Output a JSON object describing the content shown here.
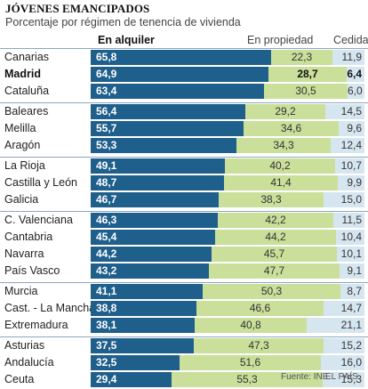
{
  "header": {
    "title": "JÓVENES EMANCIPADOS",
    "subtitle": "Porcentaje por régimen de tenencia de vivienda"
  },
  "columns": {
    "rent": "En alquiler",
    "own": "En propiedad",
    "ced": "Cedida"
  },
  "footer": {
    "source": "Fuente: INE.",
    "credit": "EL PAÍS"
  },
  "colors": {
    "rent": "#1f5f8b",
    "own": "#c9df9a",
    "ced": "#d6e6f0"
  },
  "chart_data": {
    "type": "bar",
    "orientation": "horizontal",
    "stacked": true,
    "title": "JÓVENES EMANCIPADOS",
    "subtitle": "Porcentaje por régimen de tenencia de vivienda",
    "categories": [
      "Canarias",
      "Madrid",
      "Cataluña",
      "Baleares",
      "Melilla",
      "Aragón",
      "La Rioja",
      "Castilla y León",
      "Galicia",
      "C. Valenciana",
      "Cantabria",
      "Navarra",
      "País Vasco",
      "Murcia",
      "Cast. - La Mancha",
      "Extremadura",
      "Asturias",
      "Andalucía",
      "Ceuta"
    ],
    "highlighted": [
      "Madrid"
    ],
    "groups": [
      3,
      3,
      3,
      4,
      3,
      3
    ],
    "series": [
      {
        "name": "En alquiler",
        "values": [
          "65,8",
          "64,9",
          "63,4",
          "56,4",
          "55,7",
          "53,3",
          "49,1",
          "48,7",
          "46,7",
          "46,3",
          "45,4",
          "44,2",
          "43,2",
          "41,1",
          "38,8",
          "38,1",
          "37,5",
          "32,5",
          "29,4"
        ]
      },
      {
        "name": "En propiedad",
        "values": [
          "22,3",
          "28,7",
          "30,5",
          "29,2",
          "34,6",
          "34,3",
          "40,2",
          "41,4",
          "38,3",
          "42,2",
          "44,2",
          "45,7",
          "47,7",
          "50,3",
          "46,6",
          "40,8",
          "47,3",
          "51,6",
          "55,3"
        ]
      },
      {
        "name": "Cedida",
        "values": [
          "11,9",
          "6,4",
          "6,0",
          "14,5",
          "9,6",
          "12,4",
          "10,7",
          "9,9",
          "15,0",
          "11,5",
          "10,4",
          "10,1",
          "9,1",
          "8,7",
          "14,7",
          "21,1",
          "15,2",
          "16,0",
          "15,3"
        ]
      }
    ],
    "xlim": [
      0,
      100
    ],
    "legend": "top column headers",
    "grid": false
  }
}
